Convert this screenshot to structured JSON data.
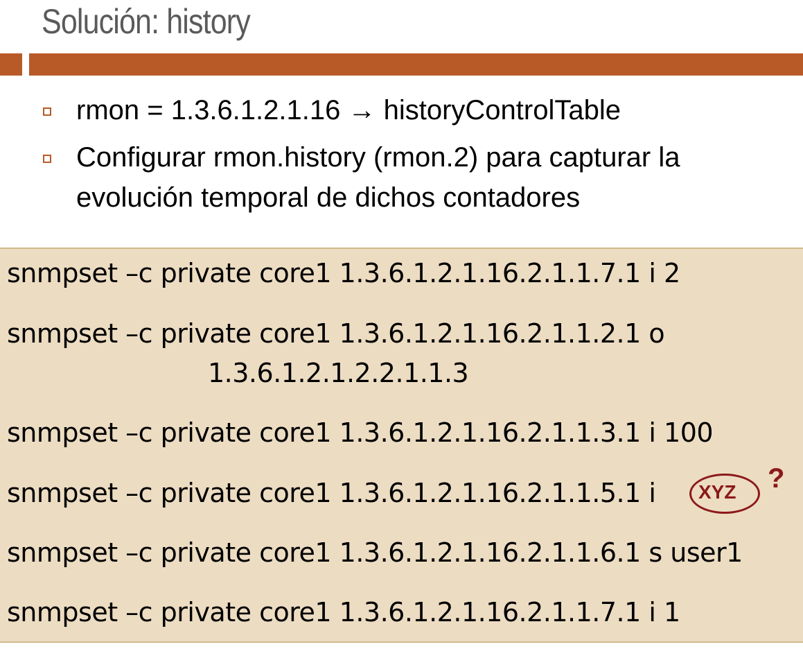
{
  "title": "Solución: history",
  "bullets": [
    "rmon = 1.3.6.1.2.1.16 → historyControlTable",
    "Configurar rmon.history (rmon.2) para capturar la",
    "evolución temporal de dichos contadores"
  ],
  "commands": [
    "snmpset –c private core1  1.3.6.1.2.1.16.2.1.1.7.1  i 2",
    "snmpset –c private core1  1.3.6.1.2.1.16.2.1.1.2.1  o",
    "1.3.6.1.2.1.2.2.1.1.3",
    "snmpset –c private core1  1.3.6.1.2.1.16.2.1.1.3.1  i 100",
    "snmpset –c private core1  1.3.6.1.2.1.16.2.1.1.5.1  i",
    "snmpset –c private core1  1.3.6.1.2.1.16.2.1.1.6.1  s user1",
    "snmpset –c private core1  1.3.6.1.2.1.16.2.1.1.7.1  i 1"
  ],
  "annotation": {
    "circled_text": "XYZ",
    "mark": "?"
  },
  "colors": {
    "accent": "#b85a28",
    "code_background": "#ecdcc2",
    "annotation": "#8b1a1a",
    "title": "#5a5a5a"
  }
}
